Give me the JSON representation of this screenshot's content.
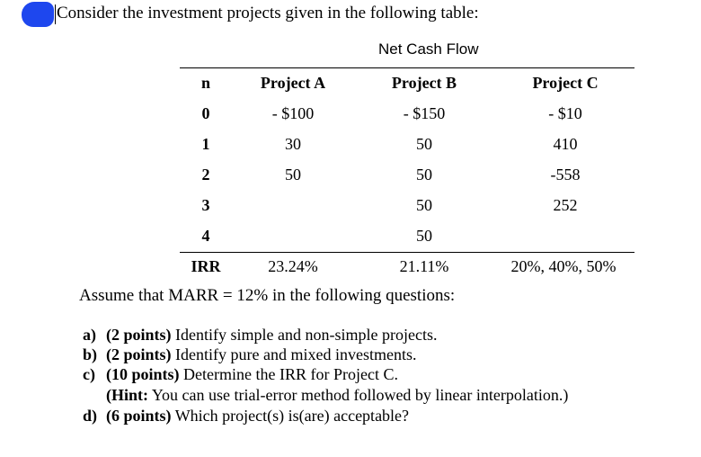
{
  "intro": "Consider the investment projects given in the following table:",
  "table": {
    "group_header": "Net Cash Flow",
    "columns": [
      "n",
      "Project A",
      "Project B",
      "Project C"
    ],
    "rows": [
      [
        "0",
        "- $100",
        "- $150",
        "- $10"
      ],
      [
        "1",
        "30",
        "50",
        "410"
      ],
      [
        "2",
        "50",
        "50",
        "-558"
      ],
      [
        "3",
        "",
        "50",
        "252"
      ],
      [
        "4",
        "",
        "50",
        ""
      ]
    ],
    "irr": {
      "label": "IRR",
      "values": [
        "23.24%",
        "21.11%",
        "20%, 40%, 50%"
      ]
    }
  },
  "assume": "Assume that MARR = 12% in the following questions:",
  "questions": [
    {
      "letter": "a)",
      "points": "(2 points)",
      "text": " Identify simple and non-simple projects."
    },
    {
      "letter": "b)",
      "points": "(2 points)",
      "text": " Identify pure and mixed investments."
    },
    {
      "letter": "c)",
      "points": "(10 points)",
      "text": " Determine the IRR for Project C.",
      "hint_label": "(Hint:",
      "hint_text": " You can use trial-error method followed by linear interpolation.)"
    },
    {
      "letter": "d)",
      "points": "(6 points)",
      "text": " Which project(s) is(are) acceptable?"
    }
  ]
}
